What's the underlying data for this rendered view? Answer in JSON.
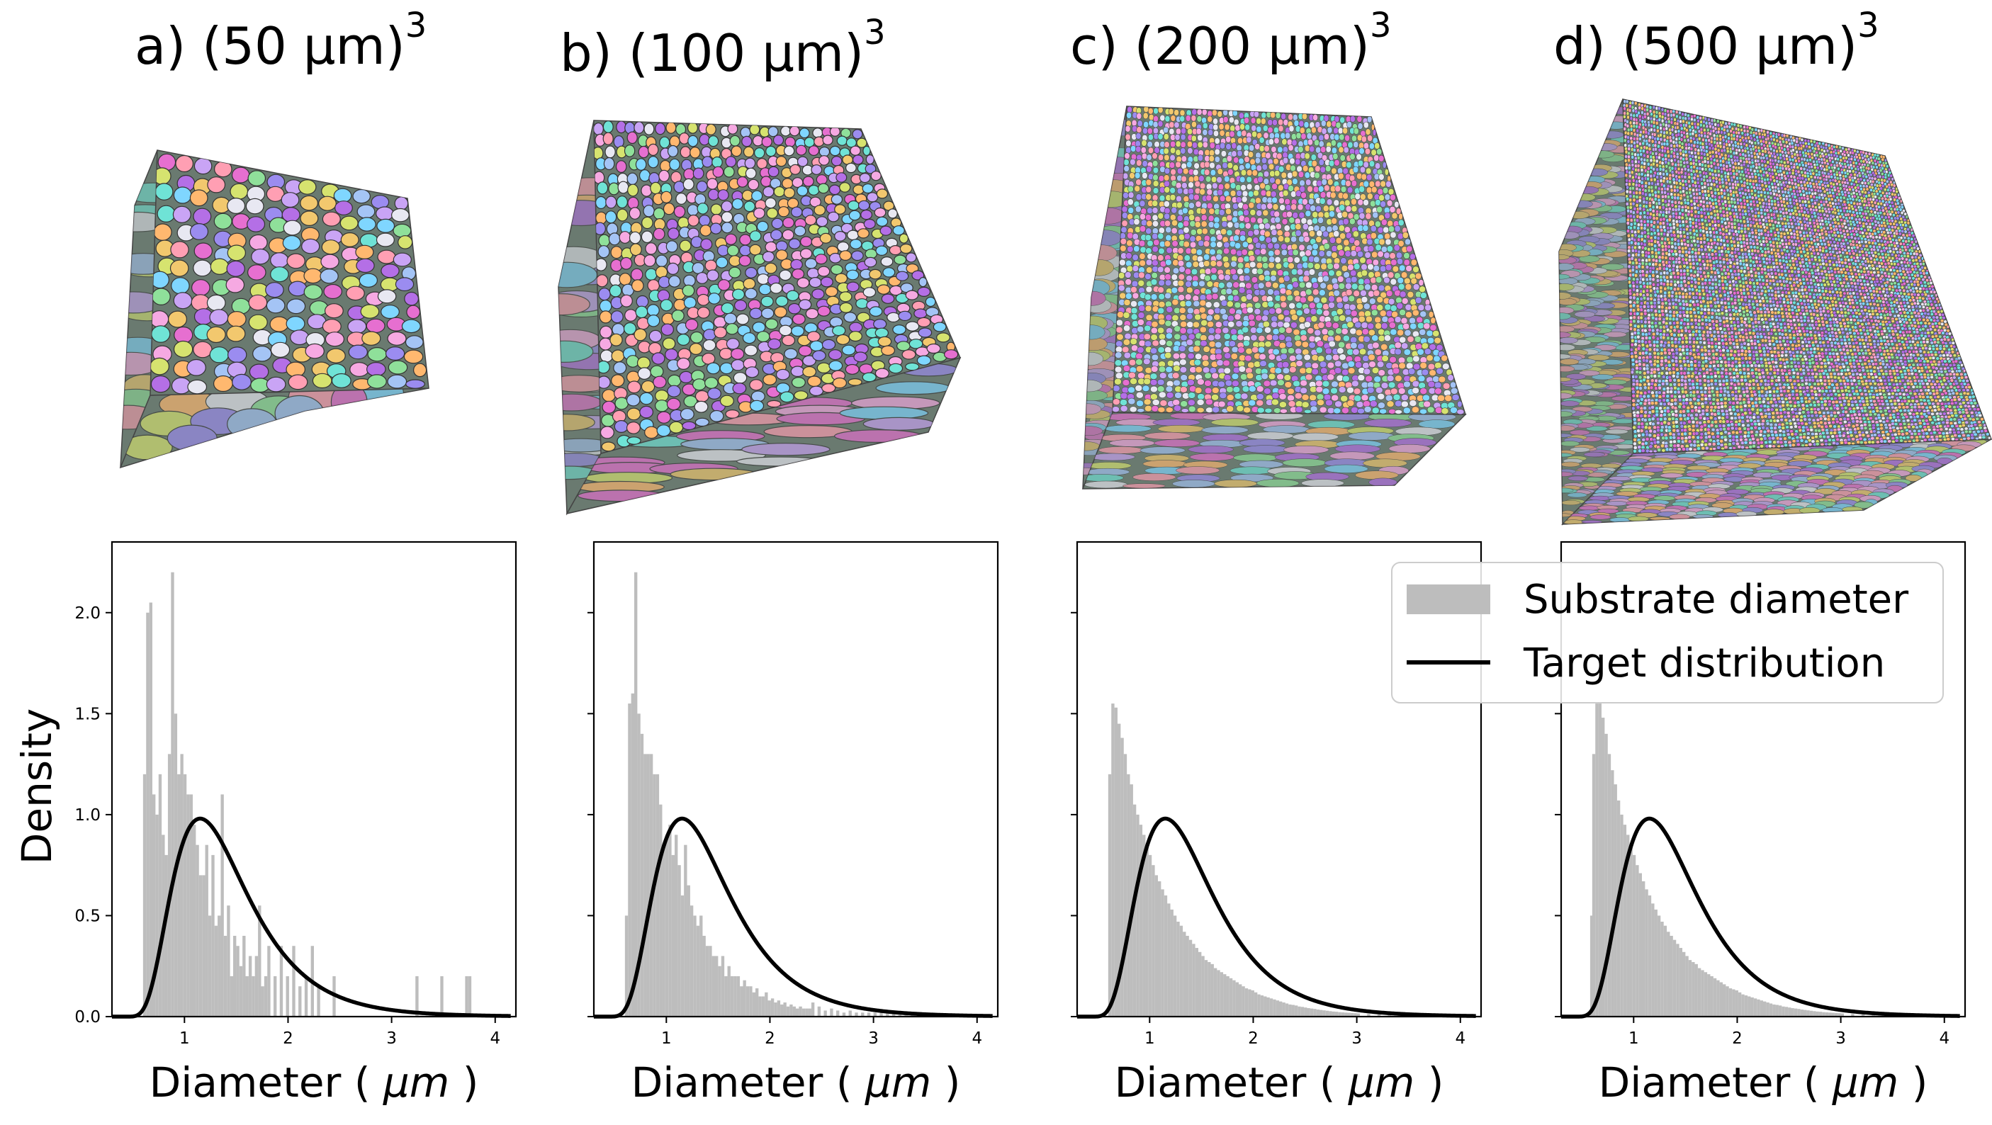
{
  "figure": {
    "y_axis_label": "Density",
    "colors": {
      "hist": "#bdbdbd",
      "curve": "#000000",
      "cube_faces": [
        "#e66fd0",
        "#7fd6ff",
        "#f6a9e2",
        "#9b8cf0",
        "#f2c86e",
        "#8fe09a",
        "#c9a4f5",
        "#ff9fb3",
        "#6fe3d6",
        "#d6e36f",
        "#ffb86f",
        "#a4c4f5",
        "#e8e8f2",
        "#b46fe6"
      ]
    }
  },
  "legend": {
    "items": [
      {
        "label": "Substrate diameter",
        "kind": "patch"
      },
      {
        "label": "Target distribution",
        "kind": "line"
      }
    ]
  },
  "chart_data": [
    {
      "type": "histogram",
      "panel_label": "a)",
      "title_base": "(50 μm)",
      "title_sup": "3",
      "xlabel_pre": "Diameter (",
      "xlabel_unit": "μm",
      "xlabel_post": ")",
      "ylabel": "Density",
      "xlim": [
        0.3,
        4.2
      ],
      "ylim": [
        0,
        2.35
      ],
      "xticks": [
        1,
        2,
        3,
        4
      ],
      "yticks": [
        0.0,
        0.5,
        1.0,
        1.5,
        2.0
      ],
      "show_ytick_labels": true,
      "bin_width": 0.03,
      "bins": [
        [
          0.6,
          1.2
        ],
        [
          0.63,
          2.0
        ],
        [
          0.66,
          2.05
        ],
        [
          0.69,
          1.1
        ],
        [
          0.72,
          1.0
        ],
        [
          0.75,
          1.2
        ],
        [
          0.78,
          0.9
        ],
        [
          0.81,
          0.8
        ],
        [
          0.84,
          1.3
        ],
        [
          0.87,
          2.2
        ],
        [
          0.9,
          1.5
        ],
        [
          0.93,
          1.2
        ],
        [
          0.96,
          1.3
        ],
        [
          0.99,
          1.2
        ],
        [
          1.02,
          1.1
        ],
        [
          1.05,
          1.1
        ],
        [
          1.08,
          0.95
        ],
        [
          1.11,
          0.85
        ],
        [
          1.14,
          0.7
        ],
        [
          1.17,
          0.7
        ],
        [
          1.2,
          0.85
        ],
        [
          1.23,
          0.5
        ],
        [
          1.26,
          0.8
        ],
        [
          1.29,
          0.45
        ],
        [
          1.32,
          0.5
        ],
        [
          1.35,
          1.1
        ],
        [
          1.38,
          0.4
        ],
        [
          1.41,
          0.55
        ],
        [
          1.44,
          0.2
        ],
        [
          1.47,
          0.4
        ],
        [
          1.5,
          0.35
        ],
        [
          1.53,
          0.25
        ],
        [
          1.56,
          0.4
        ],
        [
          1.59,
          0.2
        ],
        [
          1.62,
          0.3
        ],
        [
          1.65,
          0.2
        ],
        [
          1.68,
          0.3
        ],
        [
          1.71,
          0.55
        ],
        [
          1.74,
          0.15
        ],
        [
          1.77,
          0.2
        ],
        [
          1.8,
          0.35
        ],
        [
          1.86,
          0.2
        ],
        [
          1.92,
          0.35
        ],
        [
          1.98,
          0.2
        ],
        [
          2.04,
          0.35
        ],
        [
          2.1,
          0.15
        ],
        [
          2.16,
          0.2
        ],
        [
          2.22,
          0.35
        ],
        [
          2.28,
          0.15
        ],
        [
          2.43,
          0.2
        ],
        [
          3.23,
          0.2
        ],
        [
          3.47,
          0.2
        ],
        [
          3.71,
          0.2
        ],
        [
          3.74,
          0.2
        ]
      ]
    },
    {
      "type": "histogram",
      "panel_label": "b)",
      "title_base": "(100 μm)",
      "title_sup": "3",
      "xlabel_pre": "Diameter (",
      "xlabel_unit": "μm",
      "xlabel_post": ")",
      "ylabel": "",
      "xlim": [
        0.3,
        4.2
      ],
      "ylim": [
        0,
        2.35
      ],
      "xticks": [
        1,
        2,
        3,
        4
      ],
      "yticks": [
        0.0,
        0.5,
        1.0,
        1.5,
        2.0
      ],
      "show_ytick_labels": false,
      "bin_width": 0.03,
      "bins": [
        [
          0.6,
          0.5
        ],
        [
          0.63,
          1.55
        ],
        [
          0.66,
          1.6
        ],
        [
          0.69,
          2.2
        ],
        [
          0.72,
          1.5
        ],
        [
          0.75,
          1.4
        ],
        [
          0.78,
          1.3
        ],
        [
          0.81,
          1.3
        ],
        [
          0.84,
          1.3
        ],
        [
          0.87,
          1.2
        ],
        [
          0.9,
          1.2
        ],
        [
          0.93,
          1.05
        ],
        [
          0.96,
          0.85
        ],
        [
          0.99,
          0.9
        ],
        [
          1.02,
          0.95
        ],
        [
          1.05,
          0.8
        ],
        [
          1.08,
          0.9
        ],
        [
          1.11,
          0.75
        ],
        [
          1.14,
          0.6
        ],
        [
          1.17,
          0.85
        ],
        [
          1.2,
          0.65
        ],
        [
          1.23,
          0.55
        ],
        [
          1.26,
          0.5
        ],
        [
          1.29,
          0.45
        ],
        [
          1.32,
          0.5
        ],
        [
          1.35,
          0.4
        ],
        [
          1.38,
          0.35
        ],
        [
          1.41,
          0.35
        ],
        [
          1.44,
          0.3
        ],
        [
          1.47,
          0.3
        ],
        [
          1.5,
          0.25
        ],
        [
          1.53,
          0.3
        ],
        [
          1.56,
          0.2
        ],
        [
          1.59,
          0.25
        ],
        [
          1.62,
          0.2
        ],
        [
          1.65,
          0.2
        ],
        [
          1.68,
          0.2
        ],
        [
          1.71,
          0.15
        ],
        [
          1.74,
          0.18
        ],
        [
          1.77,
          0.15
        ],
        [
          1.8,
          0.15
        ],
        [
          1.83,
          0.12
        ],
        [
          1.86,
          0.14
        ],
        [
          1.89,
          0.1
        ],
        [
          1.92,
          0.1
        ],
        [
          1.95,
          0.12
        ],
        [
          1.98,
          0.08
        ],
        [
          2.01,
          0.09
        ],
        [
          2.04,
          0.07
        ],
        [
          2.07,
          0.08
        ],
        [
          2.1,
          0.06
        ],
        [
          2.13,
          0.07
        ],
        [
          2.16,
          0.05
        ],
        [
          2.19,
          0.06
        ],
        [
          2.22,
          0.05
        ],
        [
          2.25,
          0.04
        ],
        [
          2.28,
          0.05
        ],
        [
          2.31,
          0.04
        ],
        [
          2.34,
          0.04
        ],
        [
          2.37,
          0.04
        ],
        [
          2.4,
          0.07
        ],
        [
          2.46,
          0.05
        ],
        [
          2.52,
          0.03
        ],
        [
          2.58,
          0.04
        ],
        [
          2.64,
          0.03
        ],
        [
          2.7,
          0.02
        ],
        [
          2.76,
          0.03
        ],
        [
          2.82,
          0.02
        ],
        [
          2.88,
          0.02
        ],
        [
          2.94,
          0.02
        ],
        [
          3.0,
          0.02
        ],
        [
          3.06,
          0.02
        ],
        [
          3.12,
          0.02
        ],
        [
          3.18,
          0.02
        ],
        [
          3.24,
          0.02
        ],
        [
          3.3,
          0.02
        ],
        [
          3.36,
          0.02
        ]
      ]
    },
    {
      "type": "histogram",
      "panel_label": "c)",
      "title_base": "(200 μm)",
      "title_sup": "3",
      "xlabel_pre": "Diameter (",
      "xlabel_unit": "μm",
      "xlabel_post": ")",
      "ylabel": "",
      "xlim": [
        0.3,
        4.2
      ],
      "ylim": [
        0,
        2.35
      ],
      "xticks": [
        1,
        2,
        3,
        4
      ],
      "yticks": [
        0.0,
        0.5,
        1.0,
        1.5,
        2.0
      ],
      "show_ytick_labels": false,
      "bin_width": 0.03,
      "bins": [
        [
          0.6,
          1.2
        ],
        [
          0.63,
          1.55
        ],
        [
          0.66,
          1.53
        ],
        [
          0.69,
          1.45
        ],
        [
          0.72,
          1.38
        ],
        [
          0.75,
          1.3
        ],
        [
          0.78,
          1.2
        ],
        [
          0.81,
          1.15
        ],
        [
          0.84,
          1.05
        ],
        [
          0.87,
          1.0
        ],
        [
          0.9,
          0.95
        ],
        [
          0.93,
          0.9
        ],
        [
          0.96,
          0.85
        ],
        [
          0.99,
          0.8
        ],
        [
          1.02,
          0.75
        ],
        [
          1.05,
          0.7
        ],
        [
          1.08,
          0.67
        ],
        [
          1.11,
          0.63
        ],
        [
          1.14,
          0.6
        ],
        [
          1.17,
          0.56
        ],
        [
          1.2,
          0.53
        ],
        [
          1.23,
          0.5
        ],
        [
          1.26,
          0.47
        ],
        [
          1.29,
          0.45
        ],
        [
          1.32,
          0.42
        ],
        [
          1.35,
          0.4
        ],
        [
          1.38,
          0.38
        ],
        [
          1.41,
          0.36
        ],
        [
          1.44,
          0.34
        ],
        [
          1.47,
          0.32
        ],
        [
          1.5,
          0.3
        ],
        [
          1.53,
          0.28
        ],
        [
          1.56,
          0.27
        ],
        [
          1.59,
          0.26
        ],
        [
          1.62,
          0.24
        ],
        [
          1.65,
          0.23
        ],
        [
          1.68,
          0.22
        ],
        [
          1.71,
          0.21
        ],
        [
          1.74,
          0.2
        ],
        [
          1.77,
          0.19
        ],
        [
          1.8,
          0.18
        ],
        [
          1.83,
          0.17
        ],
        [
          1.86,
          0.16
        ],
        [
          1.89,
          0.15
        ],
        [
          1.92,
          0.14
        ],
        [
          1.95,
          0.135
        ],
        [
          1.98,
          0.13
        ],
        [
          2.01,
          0.12
        ],
        [
          2.04,
          0.11
        ],
        [
          2.07,
          0.105
        ],
        [
          2.1,
          0.1
        ],
        [
          2.13,
          0.095
        ],
        [
          2.16,
          0.09
        ],
        [
          2.19,
          0.085
        ],
        [
          2.22,
          0.08
        ],
        [
          2.25,
          0.075
        ],
        [
          2.28,
          0.07
        ],
        [
          2.31,
          0.065
        ],
        [
          2.34,
          0.06
        ],
        [
          2.37,
          0.058
        ],
        [
          2.4,
          0.055
        ],
        [
          2.43,
          0.05
        ],
        [
          2.46,
          0.048
        ],
        [
          2.49,
          0.045
        ],
        [
          2.52,
          0.042
        ],
        [
          2.55,
          0.04
        ],
        [
          2.58,
          0.038
        ],
        [
          2.61,
          0.035
        ],
        [
          2.64,
          0.033
        ],
        [
          2.67,
          0.031
        ],
        [
          2.7,
          0.029
        ],
        [
          2.73,
          0.027
        ],
        [
          2.76,
          0.025
        ],
        [
          2.79,
          0.024
        ],
        [
          2.82,
          0.022
        ],
        [
          2.85,
          0.021
        ],
        [
          2.88,
          0.02
        ],
        [
          2.91,
          0.019
        ],
        [
          2.94,
          0.018
        ],
        [
          2.97,
          0.017
        ],
        [
          3.0,
          0.016
        ],
        [
          3.1,
          0.013
        ],
        [
          3.2,
          0.011
        ],
        [
          3.3,
          0.009
        ],
        [
          3.4,
          0.007
        ],
        [
          3.5,
          0.006
        ],
        [
          3.6,
          0.005
        ],
        [
          3.7,
          0.004
        ],
        [
          3.8,
          0.003
        ]
      ]
    },
    {
      "type": "histogram",
      "panel_label": "d)",
      "title_base": "(500 μm)",
      "title_sup": "3",
      "xlabel_pre": "Diameter (",
      "xlabel_unit": "μm",
      "xlabel_post": ")",
      "ylabel": "",
      "xlim": [
        0.3,
        4.2
      ],
      "ylim": [
        0,
        2.35
      ],
      "xticks": [
        1,
        2,
        3,
        4
      ],
      "yticks": [
        0.0,
        0.5,
        1.0,
        1.5,
        2.0
      ],
      "show_ytick_labels": false,
      "bin_width": 0.03,
      "bins": [
        [
          0.58,
          0.5
        ],
        [
          0.6,
          1.3
        ],
        [
          0.63,
          1.55
        ],
        [
          0.66,
          1.55
        ],
        [
          0.69,
          1.48
        ],
        [
          0.72,
          1.4
        ],
        [
          0.75,
          1.3
        ],
        [
          0.78,
          1.22
        ],
        [
          0.81,
          1.15
        ],
        [
          0.84,
          1.07
        ],
        [
          0.87,
          1.0
        ],
        [
          0.9,
          0.95
        ],
        [
          0.93,
          0.9
        ],
        [
          0.96,
          0.85
        ],
        [
          0.99,
          0.8
        ],
        [
          1.02,
          0.75
        ],
        [
          1.05,
          0.71
        ],
        [
          1.08,
          0.67
        ],
        [
          1.11,
          0.63
        ],
        [
          1.14,
          0.6
        ],
        [
          1.17,
          0.56
        ],
        [
          1.2,
          0.53
        ],
        [
          1.23,
          0.5
        ],
        [
          1.26,
          0.47
        ],
        [
          1.29,
          0.45
        ],
        [
          1.32,
          0.42
        ],
        [
          1.35,
          0.4
        ],
        [
          1.38,
          0.38
        ],
        [
          1.41,
          0.36
        ],
        [
          1.44,
          0.34
        ],
        [
          1.47,
          0.32
        ],
        [
          1.5,
          0.3
        ],
        [
          1.53,
          0.28
        ],
        [
          1.56,
          0.27
        ],
        [
          1.59,
          0.26
        ],
        [
          1.62,
          0.24
        ],
        [
          1.65,
          0.23
        ],
        [
          1.68,
          0.22
        ],
        [
          1.71,
          0.21
        ],
        [
          1.74,
          0.2
        ],
        [
          1.77,
          0.19
        ],
        [
          1.8,
          0.18
        ],
        [
          1.83,
          0.17
        ],
        [
          1.86,
          0.16
        ],
        [
          1.89,
          0.15
        ],
        [
          1.92,
          0.14
        ],
        [
          1.95,
          0.135
        ],
        [
          1.98,
          0.13
        ],
        [
          2.01,
          0.12
        ],
        [
          2.04,
          0.11
        ],
        [
          2.07,
          0.105
        ],
        [
          2.1,
          0.1
        ],
        [
          2.13,
          0.095
        ],
        [
          2.16,
          0.09
        ],
        [
          2.19,
          0.085
        ],
        [
          2.22,
          0.08
        ],
        [
          2.25,
          0.075
        ],
        [
          2.28,
          0.07
        ],
        [
          2.31,
          0.065
        ],
        [
          2.34,
          0.06
        ],
        [
          2.37,
          0.058
        ],
        [
          2.4,
          0.055
        ],
        [
          2.43,
          0.05
        ],
        [
          2.46,
          0.048
        ],
        [
          2.49,
          0.045
        ],
        [
          2.52,
          0.042
        ],
        [
          2.55,
          0.04
        ],
        [
          2.58,
          0.038
        ],
        [
          2.61,
          0.035
        ],
        [
          2.64,
          0.033
        ],
        [
          2.67,
          0.031
        ],
        [
          2.7,
          0.029
        ],
        [
          2.73,
          0.027
        ],
        [
          2.76,
          0.025
        ],
        [
          2.79,
          0.024
        ],
        [
          2.82,
          0.022
        ],
        [
          2.85,
          0.021
        ],
        [
          2.88,
          0.02
        ],
        [
          2.91,
          0.019
        ],
        [
          2.94,
          0.018
        ],
        [
          2.97,
          0.017
        ],
        [
          3.0,
          0.016
        ],
        [
          3.1,
          0.013
        ],
        [
          3.2,
          0.011
        ],
        [
          3.3,
          0.009
        ],
        [
          3.4,
          0.007
        ],
        [
          3.5,
          0.006
        ],
        [
          3.6,
          0.005
        ],
        [
          3.7,
          0.004
        ],
        [
          3.8,
          0.003
        ]
      ]
    }
  ],
  "target_curve": {
    "description": "lognormal",
    "mu": -0.0202,
    "sigma": 0.462,
    "shift": 0.36,
    "x_range": [
      0.3,
      4.15
    ]
  }
}
